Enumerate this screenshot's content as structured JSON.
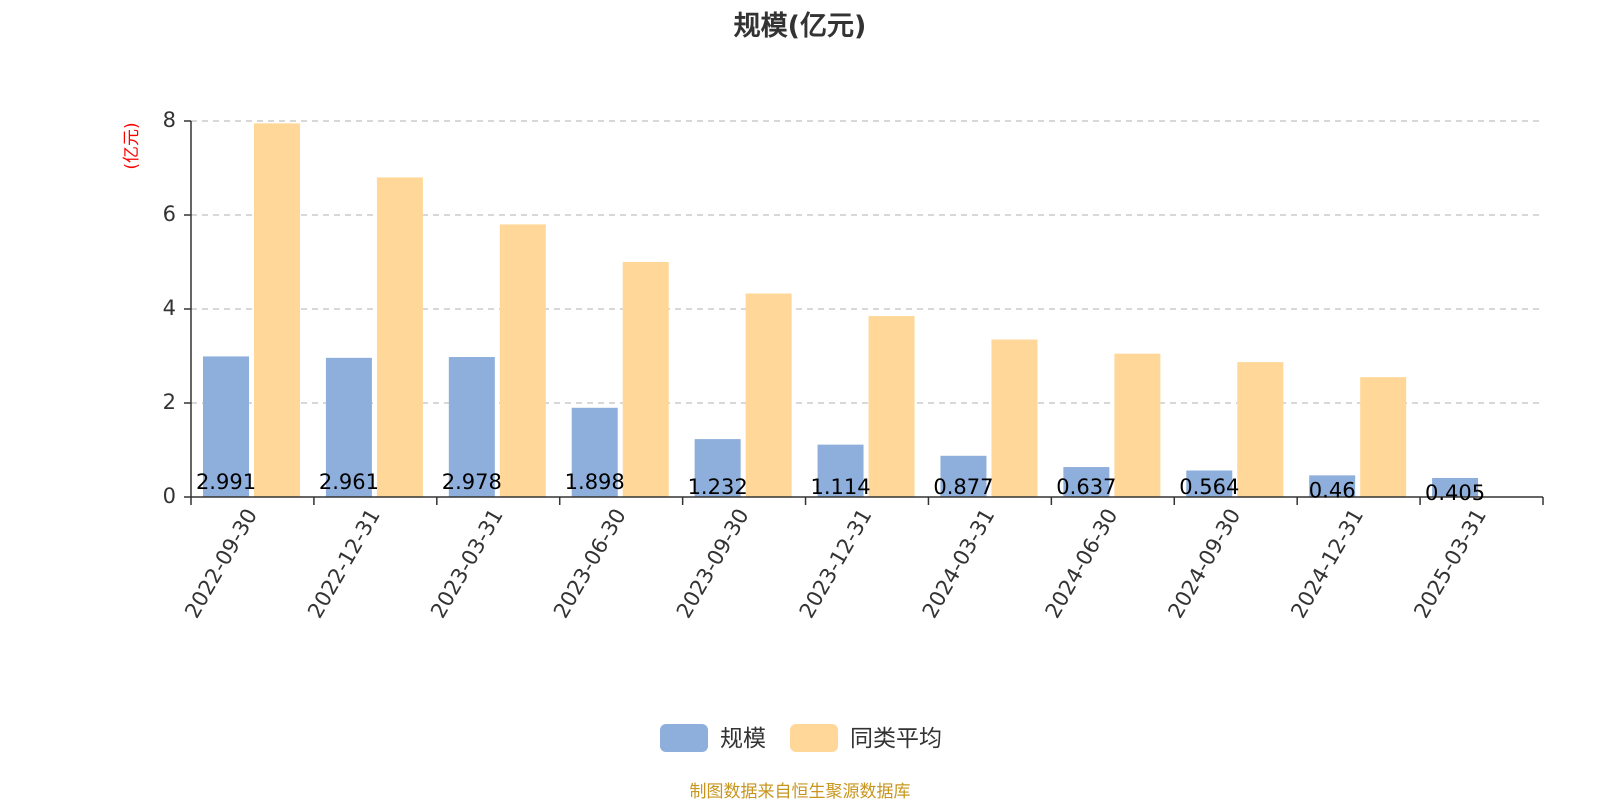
{
  "title": "规模(亿元)",
  "source_note": "制图数据来自恒生聚源数据库",
  "colors": {
    "scale": "#8eaedb",
    "peer_average": "#ffd899",
    "unit_label": "#ff0000",
    "source_note": "#c8961e",
    "axis": "#333333",
    "grid": "#cccccc"
  },
  "chart_data": {
    "type": "bar",
    "title": "规模(亿元)",
    "ylabel": "(亿元)",
    "xlabel": "",
    "categories": [
      "2022-09-30",
      "2022-12-31",
      "2023-03-31",
      "2023-06-30",
      "2023-09-30",
      "2023-12-31",
      "2024-03-31",
      "2024-06-30",
      "2024-09-30",
      "2024-12-31",
      "2025-03-31"
    ],
    "ylim": [
      0,
      8
    ],
    "yticks": [
      0,
      2,
      4,
      6,
      8
    ],
    "grid": true,
    "legend_position": "bottom-center",
    "series": [
      {
        "name": "规模",
        "values": [
          2.991,
          2.961,
          2.978,
          1.898,
          1.232,
          1.114,
          0.877,
          0.637,
          0.564,
          0.46,
          0.405
        ],
        "data_labels": [
          "2.991",
          "2.961",
          "2.978",
          "1.898",
          "1.232",
          "1.114",
          "0.877",
          "0.637",
          "0.564",
          "0.46",
          "0.405"
        ]
      },
      {
        "name": "同类平均",
        "values": [
          7.95,
          6.8,
          5.8,
          5.0,
          4.33,
          3.85,
          3.35,
          3.05,
          2.87,
          2.55,
          null
        ]
      }
    ]
  }
}
